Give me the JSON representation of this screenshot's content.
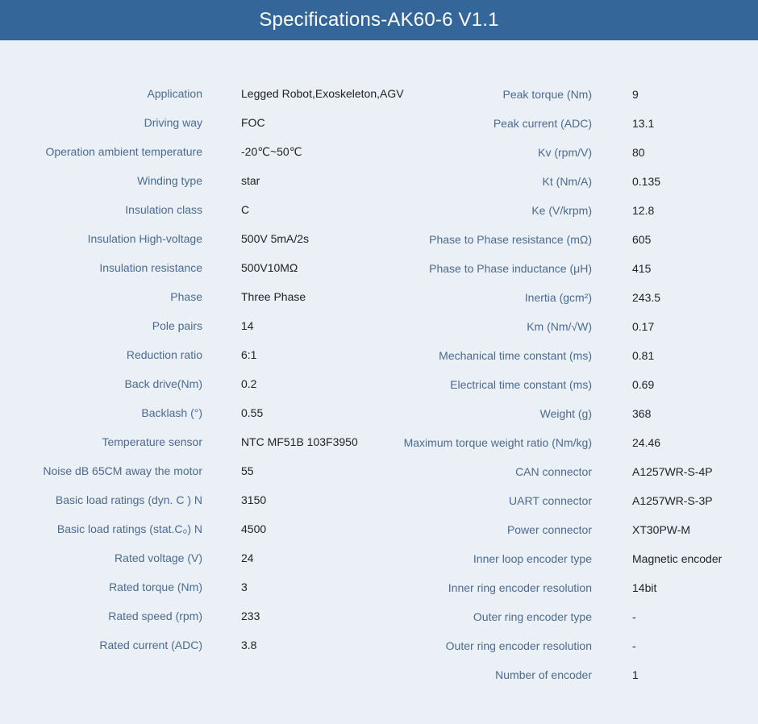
{
  "title": "Specifications-AK60-6 V1.1",
  "left": [
    {
      "label": "Application",
      "value": "Legged Robot,Exoskeleton,AGV"
    },
    {
      "label": "Driving way",
      "value": "FOC"
    },
    {
      "label": "Operation ambient temperature",
      "value": "-20℃~50℃"
    },
    {
      "label": "Winding type",
      "value": "star"
    },
    {
      "label": "Insulation class",
      "value": "C"
    },
    {
      "label": "Insulation High-voltage",
      "value": "500V 5mA/2s"
    },
    {
      "label": "Insulation resistance",
      "value": "500V10MΩ"
    },
    {
      "label": "Phase",
      "value": "Three Phase"
    },
    {
      "label": "Pole pairs",
      "value": "14"
    },
    {
      "label": "Reduction ratio",
      "value": "6:1"
    },
    {
      "label": "Back drive(Nm)",
      "value": "0.2"
    },
    {
      "label": "Backlash (°)",
      "value": "0.55"
    },
    {
      "label": "Temperature sensor",
      "value": "NTC MF51B 103F3950"
    },
    {
      "label": "Noise dB 65CM away the motor",
      "value": "55"
    },
    {
      "label": "Basic load ratings (dyn. C ) N",
      "value": "3150"
    },
    {
      "label": "Basic load ratings (stat.C₀) N",
      "value": "4500"
    },
    {
      "label": "Rated voltage (V)",
      "value": "24"
    },
    {
      "label": "Rated torque (Nm)",
      "value": "3"
    },
    {
      "label": "Rated speed (rpm)",
      "value": "233"
    },
    {
      "label": "Rated current (ADC)",
      "value": "3.8"
    }
  ],
  "right": [
    {
      "label": "Peak torque (Nm)",
      "value": "9"
    },
    {
      "label": "Peak current (ADC)",
      "value": "13.1"
    },
    {
      "label": "Kv (rpm/V)",
      "value": "80"
    },
    {
      "label": "Kt (Nm/A)",
      "value": "0.135"
    },
    {
      "label": "Ke (V/krpm)",
      "value": "12.8"
    },
    {
      "label": "Phase to Phase resistance (mΩ)",
      "value": "605"
    },
    {
      "label": "Phase to Phase inductance (μH)",
      "value": "415"
    },
    {
      "label": "Inertia (gcm²)",
      "value": "243.5"
    },
    {
      "label": "Km (Nm/√W)",
      "value": "0.17"
    },
    {
      "label": "Mechanical time constant (ms)",
      "value": "0.81"
    },
    {
      "label": "Electrical time constant (ms)",
      "value": "0.69"
    },
    {
      "label": "Weight (g)",
      "value": "368"
    },
    {
      "label": "Maximum torque weight ratio (Nm/kg)",
      "value": "24.46"
    },
    {
      "label": "CAN connector",
      "value": "A1257WR-S-4P"
    },
    {
      "label": "UART connector",
      "value": "A1257WR-S-3P"
    },
    {
      "label": "Power connector",
      "value": "XT30PW-M"
    },
    {
      "label": "Inner loop encoder type",
      "value": "Magnetic encoder"
    },
    {
      "label": "Inner ring encoder resolution",
      "value": "14bit"
    },
    {
      "label": "Outer ring encoder type",
      "value": "-"
    },
    {
      "label": "Outer ring encoder resolution",
      "value": "-"
    },
    {
      "label": "Number of encoder",
      "value": "1"
    }
  ]
}
